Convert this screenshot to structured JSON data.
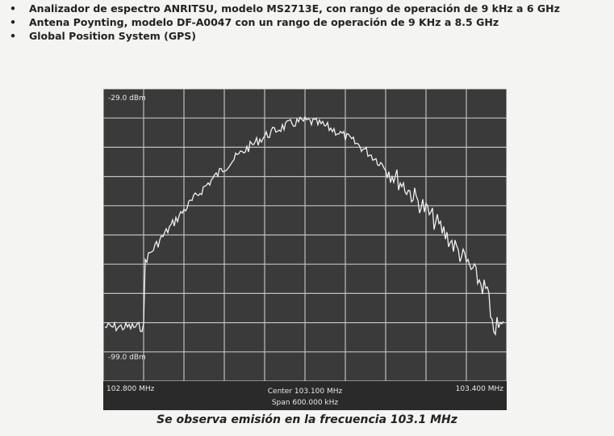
{
  "bullets": [
    "Analizador de espectro ANRITSU, modelo MS2713E, con rango de operación de 9 kHz a 6 GHz",
    "Antena Poynting, modelo DF-A0047 con un rango de operación de 9 KHz a 8.5 GHz",
    "Global Position System (GPS)"
  ],
  "screen": {
    "start": "102.800 MHz",
    "center": "Center 103.100 MHz",
    "span": "Span 600.000 kHz",
    "stop": "103.400 MHz",
    "ref_top": "-29.0 dBm",
    "ref_bottom": "-99.0 dBm"
  },
  "caption": "Se observa emisión en la frecuencia 103.1 MHz"
}
